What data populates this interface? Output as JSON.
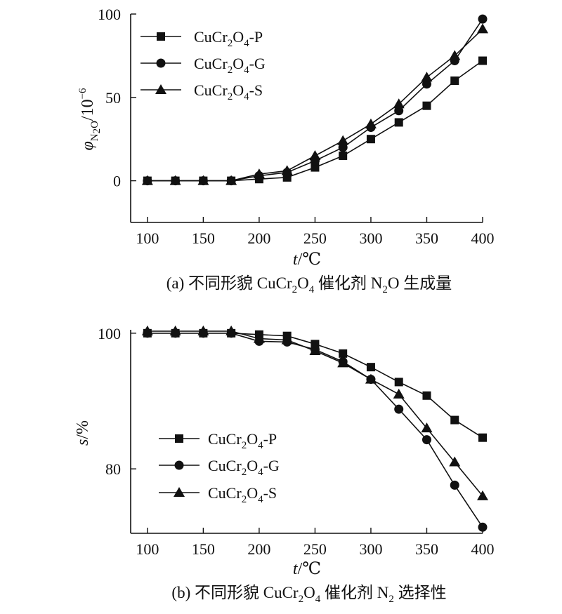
{
  "chart_data": [
    {
      "type": "line",
      "caption": {
        "label": "(a)",
        "pre": "不同形貌",
        "formula": {
          "base": "CuCr",
          "sub1": "2",
          "mid": "O",
          "sub2": "4"
        },
        "post": "催化剂",
        "species": {
          "base": "N",
          "sub": "2",
          "tail": "O"
        },
        "end": "生成量"
      },
      "xlabel": {
        "symbol": "t",
        "unit": "/℃"
      },
      "ylabel": {
        "symbol": "φ",
        "sub": "N2O",
        "sub_base": "N",
        "sub_sub": "2",
        "sub_tail": "O",
        "unit": "/10",
        "exp": "−6"
      },
      "x": [
        100,
        125,
        150,
        175,
        200,
        225,
        250,
        275,
        300,
        325,
        350,
        375,
        400
      ],
      "xticks": [
        100,
        150,
        200,
        250,
        300,
        350,
        400
      ],
      "yticks": [
        0,
        50,
        100
      ],
      "xlim": [
        85,
        400
      ],
      "ylim": [
        -25,
        100
      ],
      "legend_position": "top-left",
      "series": [
        {
          "name": "CuCr2O4-P",
          "label": {
            "base": "CuCr",
            "sub1": "2",
            "mid": "O",
            "sub2": "4",
            "suffix": "-P"
          },
          "marker": "square",
          "values": [
            0,
            0,
            0,
            0,
            1,
            2,
            8,
            15,
            25,
            35,
            45,
            60,
            72
          ]
        },
        {
          "name": "CuCr2O4-G",
          "label": {
            "base": "CuCr",
            "sub1": "2",
            "mid": "O",
            "sub2": "4",
            "suffix": "-G"
          },
          "marker": "circle",
          "values": [
            0,
            0,
            0,
            0,
            3,
            5,
            12,
            20,
            32,
            42,
            58,
            72,
            97
          ]
        },
        {
          "name": "CuCr2O4-S",
          "label": {
            "base": "CuCr",
            "sub1": "2",
            "mid": "O",
            "sub2": "4",
            "suffix": "-S"
          },
          "marker": "triangle",
          "values": [
            0,
            0,
            0,
            0,
            4,
            6,
            15,
            24,
            34,
            46,
            62,
            75,
            91
          ]
        }
      ]
    },
    {
      "type": "line",
      "caption": {
        "label": "(b)",
        "pre": "不同形貌",
        "formula": {
          "base": "CuCr",
          "sub1": "2",
          "mid": "O",
          "sub2": "4"
        },
        "post": "催化剂",
        "species": {
          "base": "N",
          "sub": "2",
          "tail": ""
        },
        "end": "选择性"
      },
      "xlabel": {
        "symbol": "t",
        "unit": "/℃"
      },
      "ylabel": {
        "symbol": "s",
        "unit": "/%"
      },
      "x": [
        100,
        125,
        150,
        175,
        200,
        225,
        250,
        275,
        300,
        325,
        350,
        375,
        400
      ],
      "xticks": [
        100,
        150,
        200,
        250,
        300,
        350,
        400
      ],
      "yticks": [
        80,
        100
      ],
      "xlim": [
        85,
        400
      ],
      "ylim": [
        70.5,
        100.5
      ],
      "legend_position": "lower-left",
      "series": [
        {
          "name": "CuCr2O4-P",
          "label": {
            "base": "CuCr",
            "sub1": "2",
            "mid": "O",
            "sub2": "4",
            "suffix": "-P"
          },
          "marker": "square",
          "values": [
            100,
            100,
            100,
            100,
            99.8,
            99.6,
            98.4,
            97.0,
            95.0,
            92.8,
            90.8,
            87.2,
            84.6
          ]
        },
        {
          "name": "CuCr2O4-G",
          "label": {
            "base": "CuCr",
            "sub1": "2",
            "mid": "O",
            "sub2": "4",
            "suffix": "-G"
          },
          "marker": "circle",
          "values": [
            100,
            100,
            100,
            100,
            98.8,
            98.7,
            97.6,
            95.8,
            93.2,
            88.8,
            84.3,
            77.6,
            71.4
          ]
        },
        {
          "name": "CuCr2O4-S",
          "label": {
            "base": "CuCr",
            "sub1": "2",
            "mid": "O",
            "sub2": "4",
            "suffix": "-S"
          },
          "marker": "triangle",
          "values": [
            100.3,
            100.3,
            100.3,
            100.3,
            99.2,
            99.0,
            97.4,
            95.6,
            93.2,
            91.0,
            86.0,
            81.0,
            76.0
          ]
        }
      ]
    }
  ]
}
